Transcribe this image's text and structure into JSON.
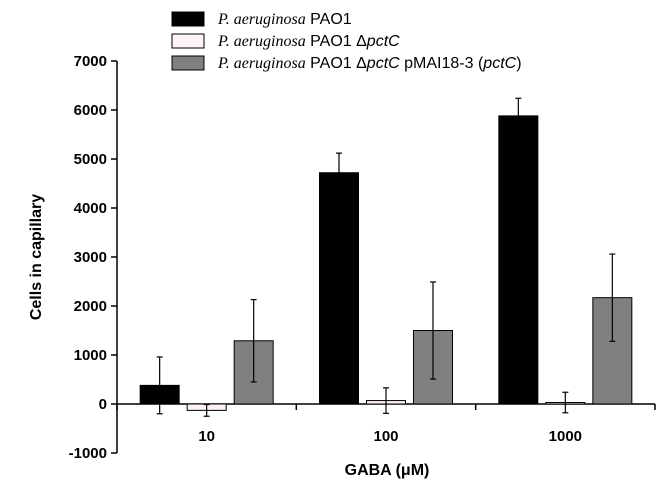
{
  "chart_data": {
    "type": "bar",
    "xlabel": "GABA (μM)",
    "ylabel": "Cells in capillary",
    "ylim": [
      -1000,
      7000
    ],
    "yticks": [
      "-1000",
      "0",
      "1000",
      "2000",
      "3000",
      "4000",
      "5000",
      "6000",
      "7000"
    ],
    "categories": [
      "10",
      "100",
      "1000"
    ],
    "grid": false,
    "legend_position": "top",
    "series": [
      {
        "name": "P. aeruginosa PAO1",
        "color": "#000000",
        "legend": [
          {
            "text": "P. aeruginosa",
            "style": "italic-serif"
          },
          {
            "text": " PAO1",
            "style": "roman"
          }
        ],
        "values": [
          380,
          4720,
          5880
        ],
        "errors": [
          580,
          400,
          360
        ]
      },
      {
        "name": "P. aeruginosa PAO1 ΔpctC",
        "color": "#fdf3f5",
        "legend": [
          {
            "text": "P. aeruginosa",
            "style": "italic-serif"
          },
          {
            "text": " PAO1 Δ",
            "style": "roman"
          },
          {
            "text": "pctC",
            "style": "italic-sans"
          }
        ],
        "values": [
          -130,
          70,
          30
        ],
        "errors": [
          120,
          260,
          210
        ]
      },
      {
        "name": "P. aeruginosa PAO1 ΔpctC pMAI18-3 (pctC)",
        "color": "#808080",
        "legend": [
          {
            "text": "P. aeruginosa",
            "style": "italic-serif"
          },
          {
            "text": " PAO1 Δ",
            "style": "roman"
          },
          {
            "text": "pctC",
            "style": "italic-sans"
          },
          {
            "text": " pMAI18-3 (",
            "style": "roman"
          },
          {
            "text": "pctC",
            "style": "italic-sans"
          },
          {
            "text": ")",
            "style": "roman"
          }
        ],
        "values": [
          1290,
          1500,
          2170
        ],
        "errors": [
          840,
          990,
          890
        ]
      }
    ]
  }
}
